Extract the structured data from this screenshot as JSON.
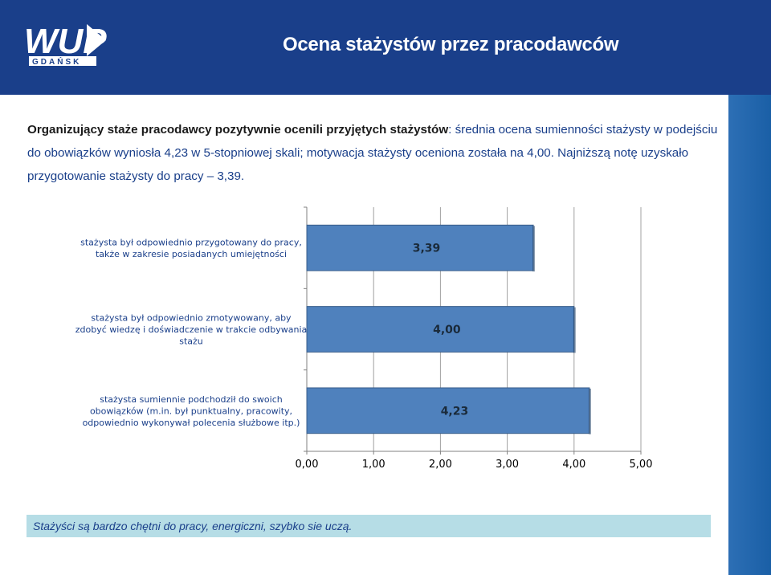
{
  "header": {
    "title": "Ocena stażystów przez pracodawców",
    "logo_text": "WUP",
    "logo_subtext": "GDAŃSK"
  },
  "intro": {
    "bold": "Organizujący staże pracodawcy pozytywnie ocenili przyjętych stażystów",
    "rest": ": średnia ocena sumienności stażysty w podejściu do obowiązków wyniosła 4,23 w 5-stopniowej skali; motywacja stażysty oceniona została na 4,00. Najniższą notę uzyskało przygotowanie stażysty do pracy – 3,39."
  },
  "chart_data": {
    "type": "bar",
    "orientation": "horizontal",
    "categories": [
      [
        "stażysta był odpowiednio przygotowany do pracy,",
        "także w zakresie posiadanych umiejętności"
      ],
      [
        "stażysta był odpowiednio zmotywowany, aby",
        "zdobyć wiedzę i doświadczenie w trakcie odbywania",
        "stażu"
      ],
      [
        "stażysta sumiennie podchodził do swoich",
        "obowiązków (m.in. był punktualny, pracowity,",
        "odpowiednio wykonywał polecenia służbowe itp.)"
      ]
    ],
    "values": [
      3.39,
      4.0,
      4.23
    ],
    "data_labels": [
      "3,39",
      "4,00",
      "4,23"
    ],
    "xlim": [
      0,
      5
    ],
    "xticks": [
      0,
      1,
      2,
      3,
      4,
      5
    ],
    "xtick_labels": [
      "0,00",
      "1,00",
      "2,00",
      "3,00",
      "4,00",
      "5,00"
    ],
    "grid": true,
    "bar_color": "#4f81bd"
  },
  "footer": {
    "text": "Stażyści są bardzo chętni do pracy, energiczni, szybko sie uczą."
  },
  "colors": {
    "header_bg": "#1a3f8a",
    "footer_bg": "#b6dde6",
    "strip_bg": "#1a5fa6"
  }
}
